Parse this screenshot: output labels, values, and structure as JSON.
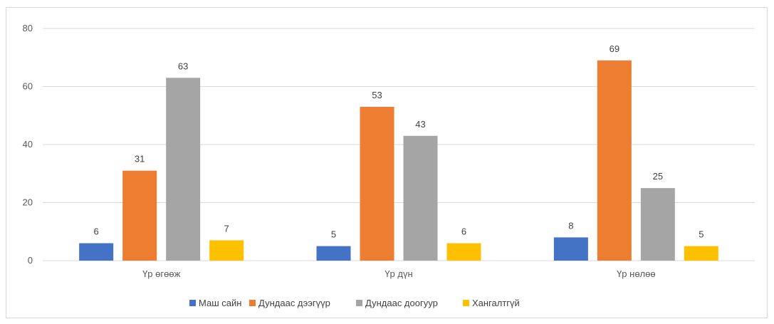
{
  "chart_data": {
    "type": "bar",
    "categories": [
      "Үр өгөөж",
      "Үр дүн",
      "Үр нөлөө"
    ],
    "series": [
      {
        "name": "Маш сайн",
        "color": "#4472c4",
        "values": [
          6,
          5,
          8
        ]
      },
      {
        "name": "Дундаас дээгүүр",
        "color": "#ed7d31",
        "values": [
          31,
          53,
          69
        ]
      },
      {
        "name": "Дундаас доогуур",
        "color": "#a5a5a5",
        "values": [
          63,
          43,
          25
        ]
      },
      {
        "name": "Хангалтгүй",
        "color": "#ffc000",
        "values": [
          7,
          6,
          5
        ]
      }
    ],
    "ylim": [
      0,
      80
    ],
    "yticks": [
      0,
      20,
      40,
      60,
      80
    ],
    "grid": true,
    "legend": "bottom",
    "data_labels": true
  }
}
